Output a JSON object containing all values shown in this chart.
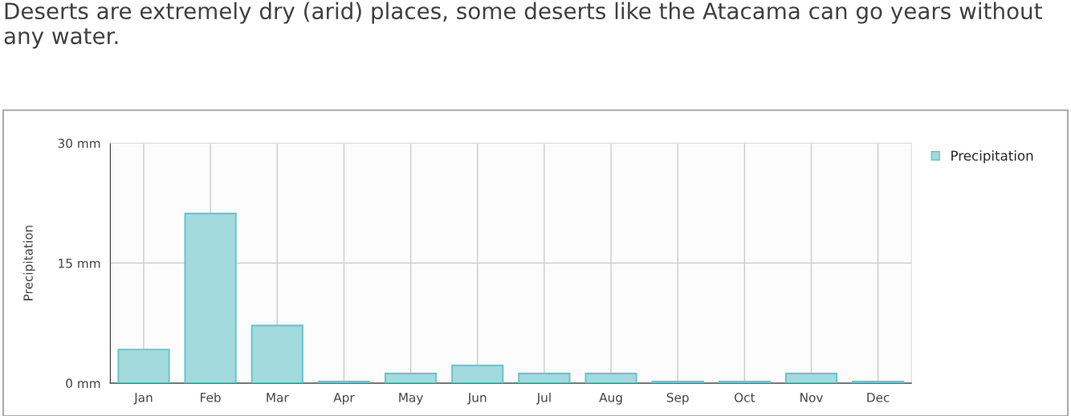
{
  "chart_data": {
    "type": "bar",
    "title": "Deserts are extremely dry (arid) places, some deserts like the Atacama can go years without any water.",
    "ylabel": "Precipitation",
    "categories": [
      "Jan",
      "Feb",
      "Mar",
      "Apr",
      "May",
      "Jun",
      "Jul",
      "Aug",
      "Sep",
      "Oct",
      "Nov",
      "Dec"
    ],
    "series": [
      {
        "name": "Precipitation",
        "color": "#a3dade",
        "values": [
          4.2,
          21.2,
          7.2,
          0.2,
          1.2,
          2.2,
          1.2,
          1.2,
          0.2,
          0.2,
          1.2,
          0.2
        ]
      }
    ],
    "ylim": [
      0,
      30
    ],
    "yticks": [
      {
        "value": 0,
        "label": "0 mm"
      },
      {
        "value": 15,
        "label": "15 mm"
      },
      {
        "value": 30,
        "label": "30 mm"
      }
    ],
    "grid": true,
    "legend": "top right"
  }
}
